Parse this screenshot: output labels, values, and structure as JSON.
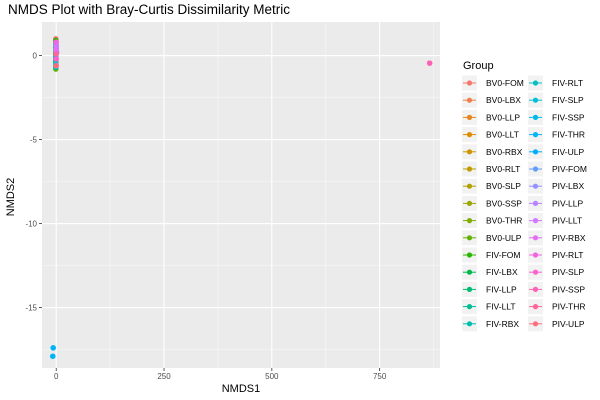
{
  "chart_data": {
    "type": "scatter",
    "title": "NMDS Plot with Bray-Curtis Dissimilarity Metric",
    "xlabel": "NMDS1",
    "ylabel": "NMDS2",
    "xlim": [
      -33,
      890
    ],
    "ylim": [
      -18.6,
      2.0
    ],
    "x_ticks": [
      0,
      250,
      500,
      750
    ],
    "y_ticks": [
      0,
      -5,
      -10,
      -15
    ],
    "grid": true,
    "legend": {
      "title": "Group",
      "placement": "right",
      "entries": [
        {
          "name": "BV0-FOM",
          "color": "#F8766D"
        },
        {
          "name": "BV0-LBX",
          "color": "#F07F4A"
        },
        {
          "name": "BV0-LLP",
          "color": "#E7861B"
        },
        {
          "name": "BV0-LLT",
          "color": "#DB8E00"
        },
        {
          "name": "BV0-RBX",
          "color": "#CE9500"
        },
        {
          "name": "BV0-RLT",
          "color": "#BF9C00"
        },
        {
          "name": "BV0-SLP",
          "color": "#AEA200"
        },
        {
          "name": "BV0-SSP",
          "color": "#9AA800"
        },
        {
          "name": "BV0-THR",
          "color": "#82AD00"
        },
        {
          "name": "BV0-ULP",
          "color": "#64B200"
        },
        {
          "name": "FIV-FOM",
          "color": "#2CB600"
        },
        {
          "name": "FIV-LBX",
          "color": "#00B94B"
        },
        {
          "name": "FIV-LLP",
          "color": "#00BB72"
        },
        {
          "name": "FIV-LLT",
          "color": "#00BD92"
        },
        {
          "name": "FIV-RBX",
          "color": "#00BFAD"
        },
        {
          "name": "FIV-RLT",
          "color": "#00C0C4"
        },
        {
          "name": "FIV-SLP",
          "color": "#00BFD9"
        },
        {
          "name": "FIV-SSP",
          "color": "#00BBEA"
        },
        {
          "name": "FIV-THR",
          "color": "#00B5F6"
        },
        {
          "name": "FIV-ULP",
          "color": "#00ACFC"
        },
        {
          "name": "PIV-FOM",
          "color": "#619CFF"
        },
        {
          "name": "PIV-LBX",
          "color": "#9590FF"
        },
        {
          "name": "PIV-LLP",
          "color": "#B983FF"
        },
        {
          "name": "PIV-LLT",
          "color": "#D277FF"
        },
        {
          "name": "PIV-RBX",
          "color": "#E56CF3"
        },
        {
          "name": "PIV-RLT",
          "color": "#F464E1"
        },
        {
          "name": "PIV-SLP",
          "color": "#FD61CC"
        },
        {
          "name": "PIV-SSP",
          "color": "#FF62B4"
        },
        {
          "name": "PIV-THR",
          "color": "#FF659A"
        },
        {
          "name": "PIV-ULP",
          "color": "#FF6C7E"
        }
      ]
    },
    "points": [
      {
        "x": -1,
        "y": 1.0,
        "group": "BV0-FOM"
      },
      {
        "x": -1,
        "y": 0.8,
        "group": "BV0-LBX"
      },
      {
        "x": -1,
        "y": 0.6,
        "group": "BV0-LLP"
      },
      {
        "x": -1,
        "y": 0.4,
        "group": "BV0-LLT"
      },
      {
        "x": -1,
        "y": 0.2,
        "group": "BV0-RBX"
      },
      {
        "x": -1,
        "y": 0.0,
        "group": "BV0-RLT"
      },
      {
        "x": -1,
        "y": -0.2,
        "group": "BV0-SLP"
      },
      {
        "x": -1,
        "y": -0.4,
        "group": "BV0-SSP"
      },
      {
        "x": -1,
        "y": -0.6,
        "group": "BV0-THR"
      },
      {
        "x": -1,
        "y": -0.8,
        "group": "BV0-ULP"
      },
      {
        "x": -1,
        "y": 0.9,
        "group": "FIV-FOM"
      },
      {
        "x": -1,
        "y": 0.5,
        "group": "FIV-LBX"
      },
      {
        "x": -1,
        "y": 0.1,
        "group": "FIV-LLP"
      },
      {
        "x": -1,
        "y": -0.3,
        "group": "FIV-LLT"
      },
      {
        "x": -1,
        "y": -0.7,
        "group": "FIV-RBX"
      },
      {
        "x": -1,
        "y": 0.7,
        "group": "FIV-RLT"
      },
      {
        "x": -1,
        "y": 0.3,
        "group": "FIV-SLP"
      },
      {
        "x": -1,
        "y": -0.5,
        "group": "FIV-SSP"
      },
      {
        "x": -7,
        "y": -17.4,
        "group": "FIV-THR"
      },
      {
        "x": -8,
        "y": -17.9,
        "group": "FIV-THR"
      },
      {
        "x": -1,
        "y": -0.1,
        "group": "FIV-ULP"
      },
      {
        "x": 0,
        "y": 0.4,
        "group": "PIV-FOM"
      },
      {
        "x": 0,
        "y": 0.6,
        "group": "PIV-LBX"
      },
      {
        "x": 1,
        "y": 0.2,
        "group": "PIV-LLP"
      },
      {
        "x": 0,
        "y": 0.5,
        "group": "PIV-LLT"
      },
      {
        "x": 0,
        "y": 0.3,
        "group": "PIV-RBX"
      },
      {
        "x": 0,
        "y": 0.8,
        "group": "PIV-RLT"
      },
      {
        "x": 0,
        "y": -0.2,
        "group": "PIV-SLP"
      },
      {
        "x": 866,
        "y": -0.45,
        "group": "PIV-SSP"
      },
      {
        "x": 0,
        "y": 0.1,
        "group": "PIV-THR"
      },
      {
        "x": 0,
        "y": -0.6,
        "group": "PIV-ULP"
      }
    ]
  }
}
